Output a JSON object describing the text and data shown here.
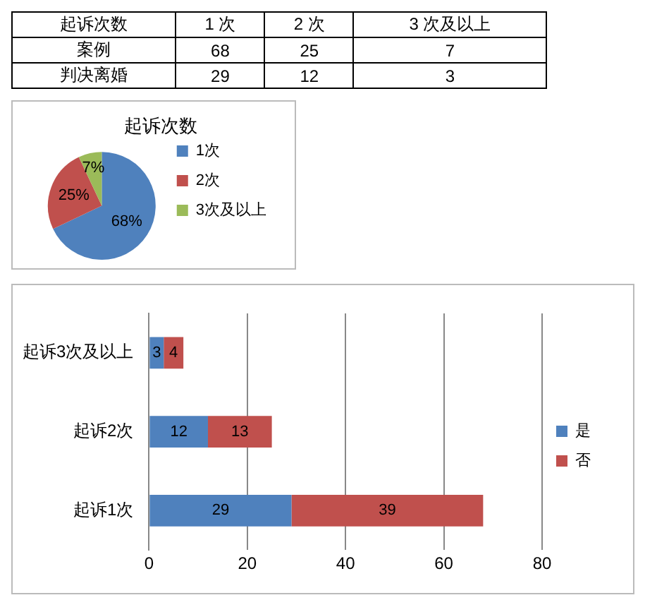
{
  "chart_data": [
    {
      "type": "other",
      "title": "起诉次数",
      "data_labels": true,
      "categories": [
        "1 次",
        "2 次",
        "3 次及以上"
      ],
      "series": [
        {
          "name": "案例",
          "values": [
            68,
            25,
            7
          ]
        },
        {
          "name": "判决离婚",
          "values": [
            29,
            12,
            3
          ]
        }
      ]
    },
    {
      "type": "pie",
      "title": "起诉次数",
      "categories": [
        "1次",
        "2次",
        "3次及以上"
      ],
      "values": [
        68,
        25,
        7
      ],
      "colors": [
        "#4f81bd",
        "#c0504d",
        "#9bbb59"
      ],
      "value_labels": [
        "68%",
        "25%",
        "7%"
      ],
      "legend": "right"
    },
    {
      "type": "bar",
      "orientation": "horizontal",
      "stacked": true,
      "categories": [
        "起诉3次及以上",
        "起诉2次",
        "起诉1次"
      ],
      "series": [
        {
          "name": "是",
          "color": "#4f81bd",
          "values": [
            3,
            12,
            29
          ]
        },
        {
          "name": "否",
          "color": "#c0504d",
          "values": [
            4,
            13,
            39
          ]
        }
      ],
      "xlim": [
        0,
        80
      ],
      "xticks": [
        0,
        20,
        40,
        60,
        80
      ],
      "grid": "x",
      "legend": "right",
      "data_labels": true
    }
  ]
}
